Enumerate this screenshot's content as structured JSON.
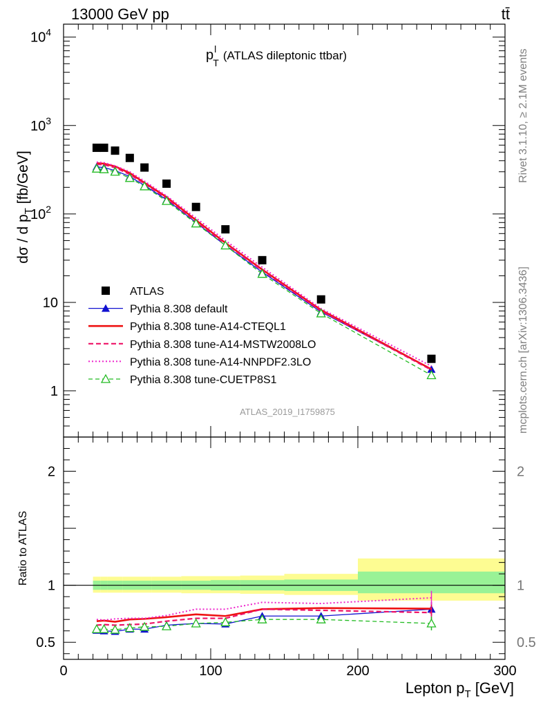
{
  "header": {
    "energy_label": "13000 GeV pp",
    "process_label": "tt̄"
  },
  "side_labels": {
    "rivet": "Rivet 3.1.10, ≥ 2.1M events",
    "mcplots": "mcplots.cern.ch [arXiv:1306.3436]"
  },
  "watermark": "ATLAS_2019_I1759875",
  "chart_data": [
    {
      "type": "line",
      "title_main": "p",
      "title_sup": "l",
      "title_sub": "T",
      "title_rest": "(ATLAS dileptonic ttbar)",
      "ylabel": "dσ / d p_T [fb/GeV]",
      "ylabel_parts": {
        "pre": "dσ / d p",
        "sub": "T",
        "post": " [fb/GeV]"
      },
      "yscale": "log",
      "ylim": [
        0.3,
        14000
      ],
      "xlim": [
        0,
        300
      ],
      "y_ticks": [
        {
          "value": 1,
          "label": "1"
        },
        {
          "value": 10,
          "label": "10"
        },
        {
          "value": 100,
          "label": "10",
          "sup": "2"
        },
        {
          "value": 1000,
          "label": "10",
          "sup": "3"
        },
        {
          "value": 10000,
          "label": "10",
          "sup": "4"
        }
      ],
      "legend_position": "bottom-left",
      "x": [
        22.5,
        27.5,
        35,
        45,
        55,
        70,
        90,
        110,
        135,
        175,
        250
      ],
      "series": [
        {
          "name": "ATLAS",
          "color": "#000000",
          "style": "marker-square",
          "values": [
            560,
            560,
            520,
            430,
            335,
            220,
            120,
            67,
            30,
            10.8,
            2.3
          ]
        },
        {
          "name": "Pythia 8.308 default",
          "color": "#1010d0",
          "style": "solid-thin-triangle",
          "values": [
            340,
            335,
            310,
            265,
            210,
            145,
            80,
            44,
            22,
            7.8,
            1.75
          ]
        },
        {
          "name": "Pythia 8.308 tune-A14-CTEQL1",
          "color": "#ee1111",
          "style": "solid-thick",
          "values": [
            375,
            370,
            345,
            290,
            225,
            155,
            85,
            47,
            23.5,
            8.2,
            1.75
          ]
        },
        {
          "name": "Pythia 8.308 tune-A14-MSTW2008LO",
          "color": "#ee1166",
          "style": "dashed",
          "values": [
            365,
            360,
            335,
            280,
            220,
            150,
            82,
            46,
            23,
            8.0,
            1.72
          ]
        },
        {
          "name": "Pythia 8.308 tune-A14-NNPDF2.3LO",
          "color": "#ee22cc",
          "style": "dotted",
          "values": [
            385,
            380,
            350,
            300,
            235,
            160,
            90,
            50,
            25,
            8.5,
            1.9
          ]
        },
        {
          "name": "Pythia 8.308 tune-CUETP8S1",
          "color": "#22bb22",
          "style": "dashed-open-triangle",
          "values": [
            325,
            320,
            300,
            255,
            205,
            140,
            78,
            44,
            21,
            7.5,
            1.5
          ]
        }
      ]
    },
    {
      "type": "line",
      "ylabel": "Ratio to ATLAS",
      "xlabel": "Lepton p_T [GeV]",
      "xlabel_parts": {
        "pre": "Lepton p",
        "sub": "T",
        "post": " [GeV]"
      },
      "ylim": [
        0.35,
        2.3
      ],
      "xlim": [
        0,
        300
      ],
      "y_ticks": [
        {
          "value": 0.5,
          "label": "0.5"
        },
        {
          "value": 1,
          "label": "1"
        },
        {
          "value": 2,
          "label": "2"
        }
      ],
      "x_ticks": [
        {
          "value": 0,
          "label": "0"
        },
        {
          "value": 100,
          "label": "100"
        },
        {
          "value": 200,
          "label": "200"
        },
        {
          "value": 300,
          "label": "300"
        }
      ],
      "bin_edges": [
        20,
        25,
        30,
        40,
        50,
        60,
        80,
        100,
        120,
        150,
        200,
        300
      ],
      "band_inner": [
        [
          0.96,
          1.04
        ],
        [
          0.96,
          1.04
        ],
        [
          0.96,
          1.04
        ],
        [
          0.96,
          1.04
        ],
        [
          0.96,
          1.04
        ],
        [
          0.96,
          1.04
        ],
        [
          0.96,
          1.04
        ],
        [
          0.955,
          1.045
        ],
        [
          0.955,
          1.045
        ],
        [
          0.95,
          1.05
        ],
        [
          0.93,
          1.12
        ]
      ],
      "band_outer": [
        [
          0.935,
          1.075
        ],
        [
          0.935,
          1.075
        ],
        [
          0.935,
          1.075
        ],
        [
          0.935,
          1.075
        ],
        [
          0.935,
          1.075
        ],
        [
          0.935,
          1.075
        ],
        [
          0.93,
          1.08
        ],
        [
          0.93,
          1.08
        ],
        [
          0.925,
          1.085
        ],
        [
          0.915,
          1.1
        ],
        [
          0.865,
          1.235
        ]
      ],
      "x": [
        22.5,
        27.5,
        35,
        45,
        55,
        70,
        90,
        110,
        135,
        175,
        250
      ],
      "series": [
        {
          "name": "Pythia 8.308 default",
          "color": "#1010d0",
          "values": [
            0.605,
            0.6,
            0.595,
            0.615,
            0.615,
            0.65,
            0.665,
            0.66,
            0.73,
            0.73,
            0.79
          ]
        },
        {
          "name": "Pythia 8.308 tune-A14-CTEQL1",
          "color": "#ee1111",
          "values": [
            0.685,
            0.69,
            0.68,
            0.7,
            0.705,
            0.72,
            0.745,
            0.73,
            0.79,
            0.8,
            0.795
          ]
        },
        {
          "name": "Pythia 8.308 tune-A14-MSTW2008LO",
          "color": "#ee1166",
          "values": [
            0.65,
            0.655,
            0.65,
            0.655,
            0.66,
            0.685,
            0.71,
            0.71,
            0.79,
            0.78,
            0.76
          ]
        },
        {
          "name": "Pythia 8.308 tune-A14-NNPDF2.3LO",
          "color": "#ee22cc",
          "values": [
            0.7,
            0.695,
            0.705,
            0.71,
            0.71,
            0.735,
            0.79,
            0.79,
            0.85,
            0.84,
            0.89
          ]
        },
        {
          "name": "Pythia 8.308 tune-CUETP8S1",
          "color": "#22bb22",
          "values": [
            0.615,
            0.615,
            0.61,
            0.625,
            0.635,
            0.64,
            0.665,
            0.675,
            0.7,
            0.7,
            0.665
          ]
        }
      ]
    }
  ]
}
